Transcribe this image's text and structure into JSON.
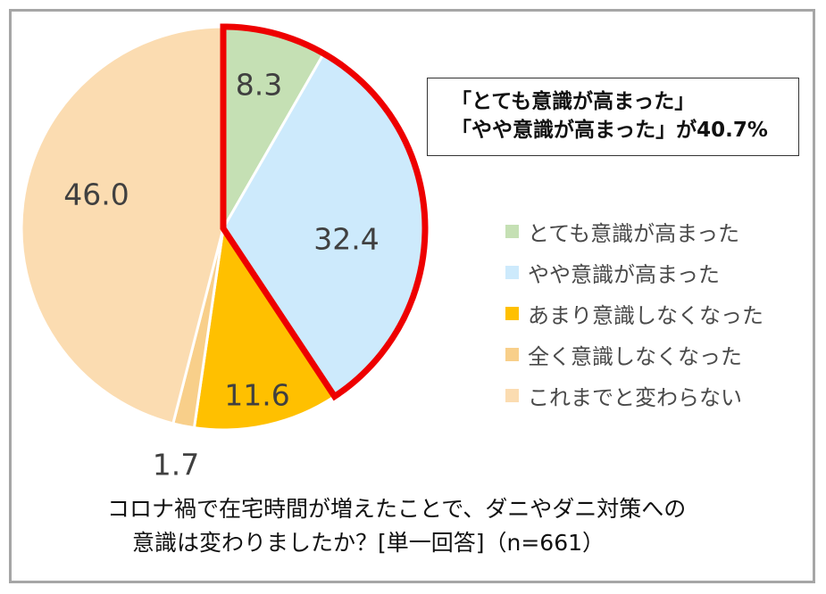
{
  "chart_data": {
    "type": "pie",
    "title": "",
    "categories": [
      "とても意識が高まった",
      "やや意識が高まった",
      "あまり意識しなくなった",
      "全く意識しなくなった",
      "これまでと変わらない"
    ],
    "values": [
      8.3,
      32.4,
      11.6,
      1.7,
      46.0
    ],
    "data_labels": [
      "8.3",
      "32.4",
      "11.6",
      "1.7",
      "46.0"
    ],
    "colors": [
      "#c5e0b4",
      "#cdeafc",
      "#ffc000",
      "#f8cf8a",
      "#fbdcb1"
    ],
    "start_angle": "12 o'clock, clockwise",
    "highlighted_slices": [
      0,
      1
    ],
    "highlight_color": "#ee0000",
    "legend_position": "right"
  },
  "callout": {
    "line1": "「とても意識が高まった」",
    "line2": "「やや意識が高まった」が40.7%"
  },
  "caption": {
    "line1": "コロナ禍で在宅時間が増えたことで、ダニやダニ対策への",
    "line2": "意識は変わりましたか？[単一回答]（n=661）"
  }
}
